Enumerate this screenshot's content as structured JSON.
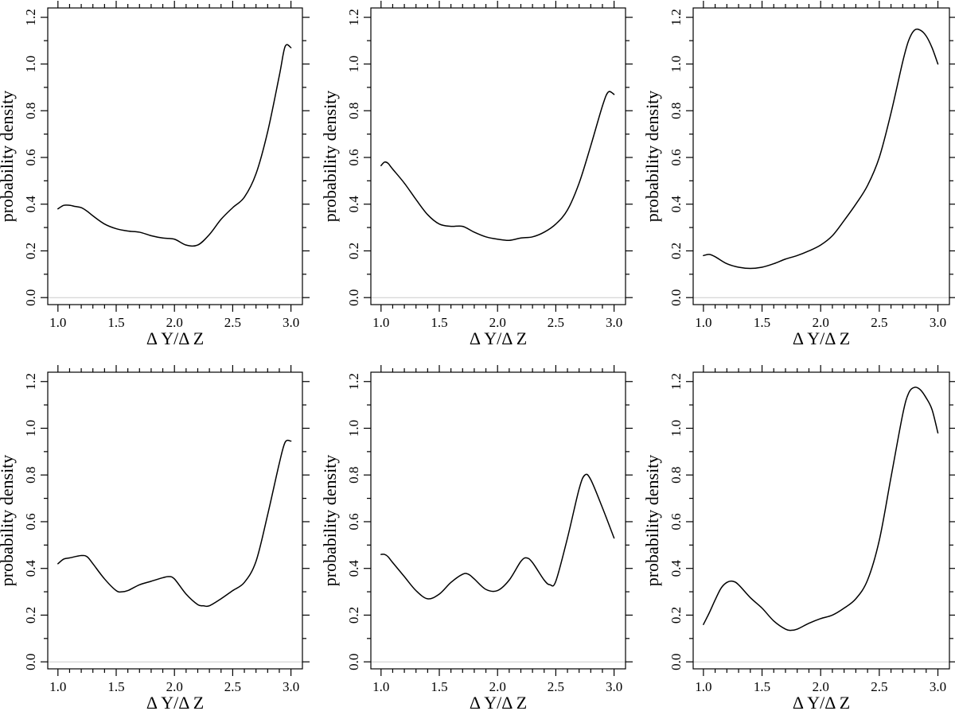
{
  "chart_data": [
    {
      "type": "line",
      "xlabel": "Δ Y/Δ Z",
      "ylabel": "probability density",
      "xlim": [
        1.0,
        3.0
      ],
      "ylim": [
        -0.03,
        1.24
      ],
      "xticks": [
        "1.0",
        "1.5",
        "2.0",
        "2.5",
        "3.0"
      ],
      "yticks": [
        "0.0",
        "0.2",
        "0.4",
        "0.6",
        "0.8",
        "1.0",
        "1.2"
      ],
      "x": [
        1.0,
        1.05,
        1.1,
        1.15,
        1.2,
        1.25,
        1.3,
        1.4,
        1.5,
        1.6,
        1.7,
        1.8,
        1.9,
        2.0,
        2.1,
        2.2,
        2.3,
        2.4,
        2.5,
        2.6,
        2.7,
        2.8,
        2.9,
        2.95,
        3.0
      ],
      "series": [
        {
          "values": [
            0.38,
            0.395,
            0.395,
            0.39,
            0.385,
            0.37,
            0.35,
            0.315,
            0.295,
            0.285,
            0.28,
            0.265,
            0.255,
            0.25,
            0.225,
            0.225,
            0.27,
            0.335,
            0.385,
            0.43,
            0.53,
            0.71,
            0.95,
            1.075,
            1.07
          ]
        }
      ]
    },
    {
      "type": "line",
      "xlabel": "Δ Y/Δ Z",
      "ylabel": "probability density",
      "xlim": [
        1.0,
        3.0
      ],
      "ylim": [
        -0.03,
        1.24
      ],
      "xticks": [
        "1.0",
        "1.5",
        "2.0",
        "2.5",
        "3.0"
      ],
      "yticks": [
        "0.0",
        "0.2",
        "0.4",
        "0.6",
        "0.8",
        "1.0",
        "1.2"
      ],
      "x": [
        1.0,
        1.03,
        1.06,
        1.1,
        1.2,
        1.3,
        1.4,
        1.5,
        1.6,
        1.7,
        1.8,
        1.9,
        2.0,
        2.1,
        2.2,
        2.3,
        2.4,
        2.5,
        2.6,
        2.7,
        2.8,
        2.9,
        2.95,
        3.0
      ],
      "series": [
        {
          "values": [
            0.565,
            0.58,
            0.575,
            0.55,
            0.49,
            0.42,
            0.355,
            0.315,
            0.305,
            0.305,
            0.28,
            0.26,
            0.25,
            0.245,
            0.255,
            0.26,
            0.28,
            0.315,
            0.375,
            0.49,
            0.65,
            0.82,
            0.88,
            0.87
          ]
        }
      ]
    },
    {
      "type": "line",
      "xlabel": "Δ Y/Δ Z",
      "ylabel": "probability density",
      "xlim": [
        1.0,
        3.0
      ],
      "ylim": [
        -0.03,
        1.24
      ],
      "xticks": [
        "1.0",
        "1.5",
        "2.0",
        "2.5",
        "3.0"
      ],
      "yticks": [
        "0.0",
        "0.2",
        "0.4",
        "0.6",
        "0.8",
        "1.0",
        "1.2"
      ],
      "x": [
        1.0,
        1.05,
        1.1,
        1.2,
        1.3,
        1.4,
        1.5,
        1.6,
        1.7,
        1.8,
        1.9,
        2.0,
        2.1,
        2.2,
        2.3,
        2.4,
        2.5,
        2.6,
        2.7,
        2.75,
        2.8,
        2.85,
        2.9,
        2.95,
        3.0
      ],
      "series": [
        {
          "values": [
            0.18,
            0.185,
            0.175,
            0.145,
            0.13,
            0.125,
            0.13,
            0.145,
            0.165,
            0.18,
            0.2,
            0.225,
            0.265,
            0.33,
            0.4,
            0.48,
            0.6,
            0.79,
            1.01,
            1.1,
            1.145,
            1.145,
            1.12,
            1.07,
            1.0
          ]
        }
      ]
    },
    {
      "type": "line",
      "xlabel": "Δ Y/Δ Z",
      "ylabel": "probability density",
      "xlim": [
        1.0,
        3.0
      ],
      "ylim": [
        -0.03,
        1.24
      ],
      "xticks": [
        "1.0",
        "1.5",
        "2.0",
        "2.5",
        "3.0"
      ],
      "yticks": [
        "0.0",
        "0.2",
        "0.4",
        "0.6",
        "0.8",
        "1.0",
        "1.2"
      ],
      "x": [
        1.0,
        1.05,
        1.1,
        1.2,
        1.25,
        1.3,
        1.4,
        1.5,
        1.55,
        1.6,
        1.7,
        1.8,
        1.9,
        1.95,
        2.0,
        2.1,
        2.2,
        2.25,
        2.3,
        2.4,
        2.5,
        2.6,
        2.7,
        2.8,
        2.9,
        2.95,
        3.0
      ],
      "series": [
        {
          "values": [
            0.42,
            0.44,
            0.445,
            0.455,
            0.45,
            0.42,
            0.355,
            0.305,
            0.3,
            0.305,
            0.33,
            0.345,
            0.36,
            0.365,
            0.355,
            0.29,
            0.245,
            0.24,
            0.24,
            0.27,
            0.305,
            0.34,
            0.43,
            0.63,
            0.85,
            0.94,
            0.945
          ]
        }
      ]
    },
    {
      "type": "line",
      "xlabel": "Δ Y/Δ Z",
      "ylabel": "probability density",
      "xlim": [
        1.0,
        3.0
      ],
      "ylim": [
        -0.03,
        1.24
      ],
      "xticks": [
        "1.0",
        "1.5",
        "2.0",
        "2.5",
        "3.0"
      ],
      "yticks": [
        "0.0",
        "0.2",
        "0.4",
        "0.6",
        "0.8",
        "1.0",
        "1.2"
      ],
      "x": [
        1.0,
        1.03,
        1.06,
        1.1,
        1.2,
        1.3,
        1.4,
        1.5,
        1.6,
        1.7,
        1.75,
        1.8,
        1.9,
        2.0,
        2.1,
        2.2,
        2.25,
        2.3,
        2.4,
        2.45,
        2.5,
        2.6,
        2.7,
        2.75,
        2.8,
        2.9,
        3.0
      ],
      "series": [
        {
          "values": [
            0.46,
            0.46,
            0.45,
            0.425,
            0.365,
            0.305,
            0.27,
            0.29,
            0.34,
            0.375,
            0.375,
            0.355,
            0.31,
            0.305,
            0.35,
            0.43,
            0.445,
            0.425,
            0.35,
            0.33,
            0.345,
            0.53,
            0.74,
            0.8,
            0.78,
            0.66,
            0.53
          ]
        }
      ]
    },
    {
      "type": "line",
      "xlabel": "Δ Y/Δ Z",
      "ylabel": "probability density",
      "xlim": [
        1.0,
        3.0
      ],
      "ylim": [
        -0.03,
        1.24
      ],
      "xticks": [
        "1.0",
        "1.5",
        "2.0",
        "2.5",
        "3.0"
      ],
      "yticks": [
        "0.0",
        "0.2",
        "0.4",
        "0.6",
        "0.8",
        "1.0",
        "1.2"
      ],
      "x": [
        1.0,
        1.05,
        1.1,
        1.15,
        1.2,
        1.25,
        1.3,
        1.4,
        1.5,
        1.6,
        1.7,
        1.75,
        1.8,
        1.9,
        2.0,
        2.1,
        2.2,
        2.3,
        2.4,
        2.5,
        2.6,
        2.7,
        2.75,
        2.8,
        2.85,
        2.9,
        2.95,
        3.0
      ],
      "series": [
        {
          "values": [
            0.16,
            0.21,
            0.265,
            0.315,
            0.34,
            0.345,
            0.33,
            0.275,
            0.23,
            0.175,
            0.14,
            0.135,
            0.14,
            0.165,
            0.185,
            0.2,
            0.23,
            0.27,
            0.35,
            0.52,
            0.79,
            1.06,
            1.15,
            1.175,
            1.165,
            1.13,
            1.08,
            0.98
          ]
        }
      ]
    }
  ]
}
